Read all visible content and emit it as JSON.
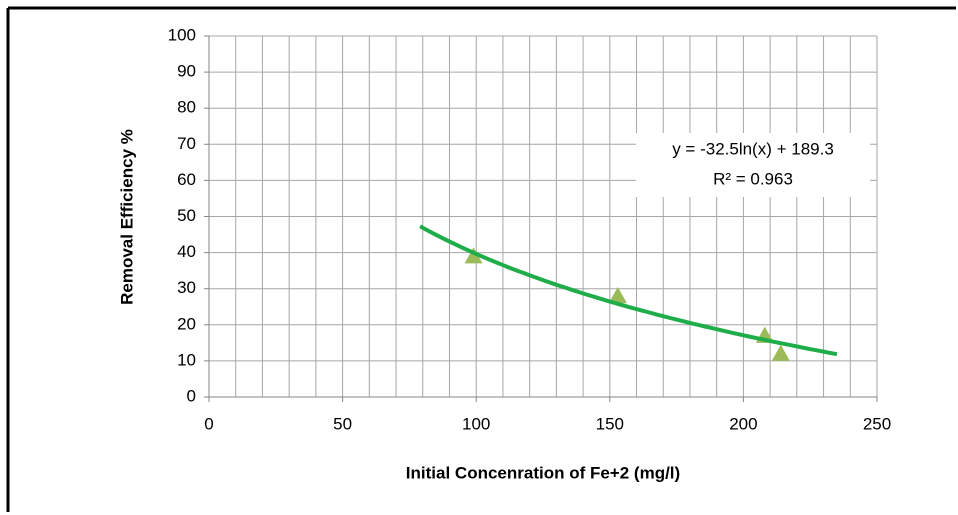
{
  "chart_data": {
    "type": "scatter",
    "x_label": "Initial Concenration of Fe+2 (mg/l)",
    "y_label": "Removal Efficiency %",
    "x": [
      99,
      153,
      208,
      214
    ],
    "values": [
      39,
      28,
      17,
      12
    ],
    "color": "#9bbb59",
    "marker": "triangle",
    "xlim": [
      0,
      250
    ],
    "xticks": [
      0,
      50,
      100,
      150,
      200,
      250
    ],
    "xgrid": [
      0,
      10,
      20,
      30,
      40,
      50,
      60,
      70,
      80,
      90,
      100,
      110,
      120,
      130,
      140,
      150,
      160,
      170,
      180,
      190,
      200,
      210,
      220,
      230,
      240,
      250
    ],
    "ylim": [
      0,
      100
    ],
    "yticks": [
      0,
      10,
      20,
      30,
      40,
      50,
      60,
      70,
      80,
      90,
      100
    ],
    "grid": true,
    "trendline": {
      "type": "log",
      "slope": -32.5,
      "intercept": 189.3,
      "xrange": [
        79,
        235
      ],
      "color": "#1fad4a",
      "equation": "y = -32.5ln(x) + 189.3",
      "r2": "R² = 0.963"
    }
  }
}
